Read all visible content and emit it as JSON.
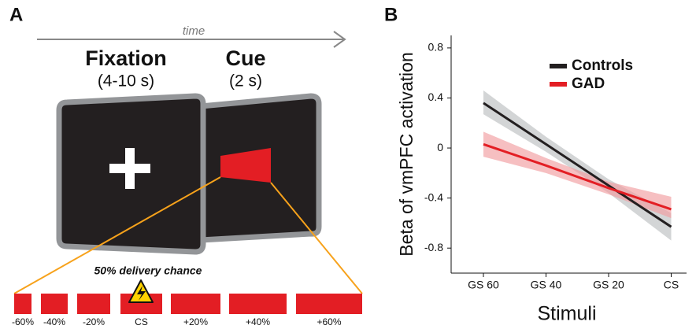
{
  "panel_a": {
    "label": "A",
    "time": "time",
    "fixation": {
      "title": "Fixation",
      "duration": "(4-10 s)"
    },
    "cue": {
      "title": "Cue",
      "duration": "(2 s)"
    },
    "delivery": "50% delivery chance",
    "stimuli": [
      "-60%",
      "-40%",
      "-20%",
      "CS",
      "+20%",
      "+40%",
      "+60%"
    ]
  },
  "chart_data": {
    "type": "line",
    "panel_label": "B",
    "ylabel": "Beta of vmPFC activation",
    "xlabel": "Stimuli",
    "categories": [
      "GS 60",
      "GS 40",
      "GS 20",
      "CS"
    ],
    "ylim": [
      -1.0,
      0.9
    ],
    "yticks": [
      0.8,
      0.4,
      0,
      -0.4,
      -0.8
    ],
    "legend": "upper right",
    "series": [
      {
        "name": "Controls",
        "color": "#231f20",
        "band_color": "#bcbec0",
        "values": [
          0.36,
          0.03,
          -0.3,
          -0.63
        ],
        "ci_lower": [
          0.27,
          -0.03,
          -0.36,
          -0.74
        ],
        "ci_upper": [
          0.46,
          0.09,
          -0.25,
          -0.52
        ]
      },
      {
        "name": "GAD",
        "color": "#e31e24",
        "band_color": "#f19ca0",
        "values": [
          0.03,
          -0.14,
          -0.32,
          -0.49
        ],
        "ci_lower": [
          -0.07,
          -0.2,
          -0.37,
          -0.56
        ],
        "ci_upper": [
          0.13,
          -0.08,
          -0.27,
          -0.39
        ]
      }
    ]
  }
}
